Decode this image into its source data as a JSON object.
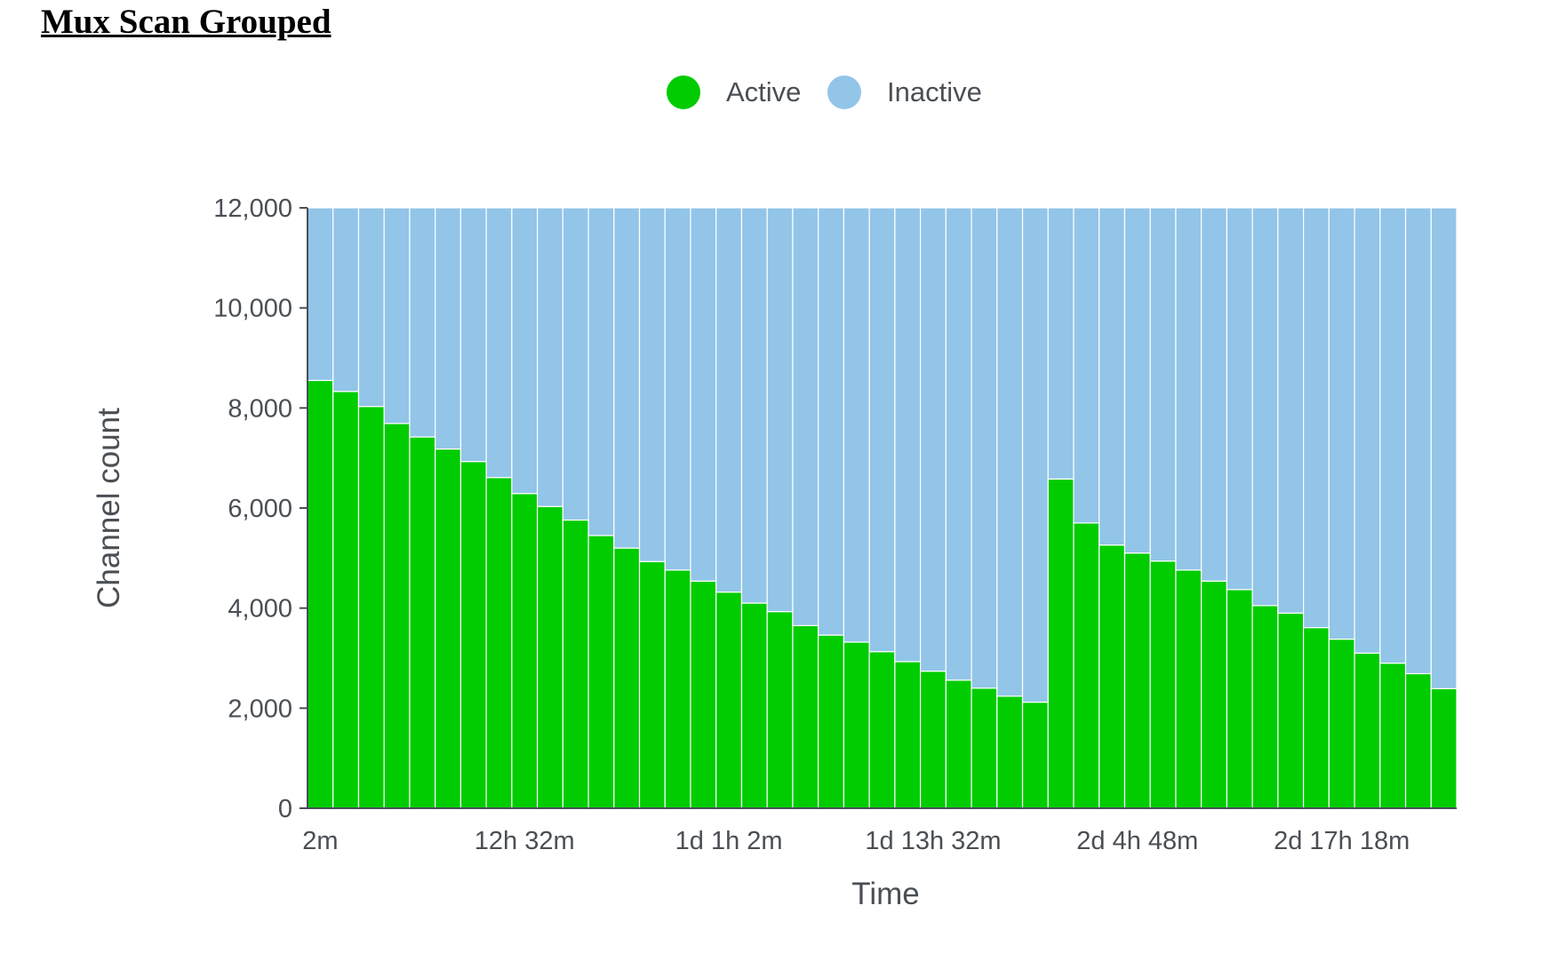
{
  "page": {
    "title": "Mux Scan Grouped"
  },
  "chart_data": {
    "type": "bar",
    "stacked": true,
    "title": "",
    "xlabel": "Time",
    "ylabel": "Channel count",
    "ylim": [
      0,
      12000
    ],
    "yticks": [
      0,
      2000,
      4000,
      6000,
      8000,
      10000,
      12000
    ],
    "ytick_labels": [
      "0",
      "2,000",
      "4,000",
      "6,000",
      "8,000",
      "10,000",
      "12,000"
    ],
    "legend_position": "top-center",
    "grid": false,
    "bar_count": 45,
    "xtick_labels": [
      {
        "index": 0,
        "label": "2m"
      },
      {
        "index": 8,
        "label": "12h 32m"
      },
      {
        "index": 16,
        "label": "1d 1h 2m"
      },
      {
        "index": 24,
        "label": "1d 13h 32m"
      },
      {
        "index": 32,
        "label": "2d 4h 48m"
      },
      {
        "index": 40,
        "label": "2d 17h 18m"
      }
    ],
    "series": [
      {
        "name": "Active",
        "color": "#00cc00",
        "values": [
          8550,
          8330,
          8030,
          7690,
          7420,
          7180,
          6930,
          6610,
          6290,
          6030,
          5760,
          5450,
          5200,
          4930,
          4760,
          4540,
          4320,
          4100,
          3930,
          3650,
          3460,
          3320,
          3130,
          2930,
          2740,
          2560,
          2400,
          2240,
          2120,
          6580,
          5700,
          5260,
          5100,
          4940,
          4760,
          4540,
          4370,
          4050,
          3900,
          3610,
          3380,
          3100,
          2900,
          2690,
          2390
        ]
      },
      {
        "name": "Inactive",
        "color": "#92c5e8",
        "values": [
          3450,
          3670,
          3970,
          4310,
          4580,
          4820,
          5070,
          5390,
          5710,
          5970,
          6240,
          6550,
          6800,
          7070,
          7240,
          7460,
          7680,
          7900,
          8070,
          8350,
          8540,
          8680,
          8870,
          9070,
          9260,
          9440,
          9600,
          9760,
          9880,
          5420,
          6300,
          6740,
          6900,
          7060,
          7240,
          7460,
          7630,
          7950,
          8100,
          8390,
          8620,
          8900,
          9100,
          9310,
          9610
        ]
      }
    ]
  }
}
